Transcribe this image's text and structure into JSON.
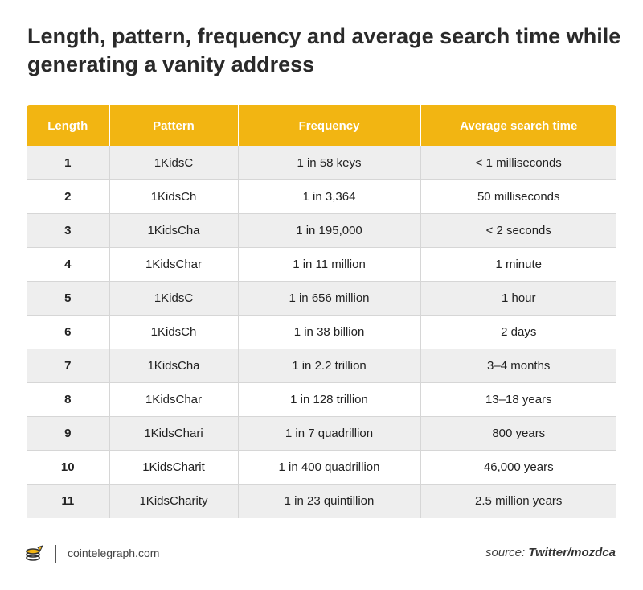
{
  "title": "Length, pattern, frequency and average search time while generating a vanity address",
  "colors": {
    "header_bg": "#f2b512",
    "row_alt_bg": "#eeeeee",
    "brand": "#f2b512"
  },
  "chart_data": {
    "type": "table",
    "title": "Length, pattern, frequency and average search time while generating a vanity address",
    "columns": [
      "Length",
      "Pattern",
      "Frequency",
      "Average search time"
    ],
    "rows": [
      [
        "1",
        "1KidsC",
        "1 in 58 keys",
        "< 1 milliseconds"
      ],
      [
        "2",
        "1KidsCh",
        "1 in 3,364",
        "50 milliseconds"
      ],
      [
        "3",
        "1KidsCha",
        "1 in 195,000",
        "< 2 seconds"
      ],
      [
        "4",
        "1KidsChar",
        "1 in 11 million",
        "1 minute"
      ],
      [
        "5",
        "1KidsC",
        "1 in 656 million",
        "1 hour"
      ],
      [
        "6",
        "1KidsCh",
        "1 in 38 billion",
        "2 days"
      ],
      [
        "7",
        "1KidsCha",
        "1 in 2.2 trillion",
        "3–4 months"
      ],
      [
        "8",
        "1KidsChar",
        "1 in 128 trillion",
        "13–18 years"
      ],
      [
        "9",
        "1KidsChari",
        "1 in 7 quadrillion",
        "800 years"
      ],
      [
        "10",
        "1KidsCharit",
        "1 in 400 quadrillion",
        "46,000 years"
      ],
      [
        "11",
        "1KidsCharity",
        "1 in 23 quintillion",
        "2.5 million years"
      ]
    ]
  },
  "footer": {
    "logo_icon": "cointelegraph-logo-icon",
    "site": "cointelegraph.com",
    "source_prefix": "source: ",
    "source_name": "Twitter/mozdca"
  }
}
